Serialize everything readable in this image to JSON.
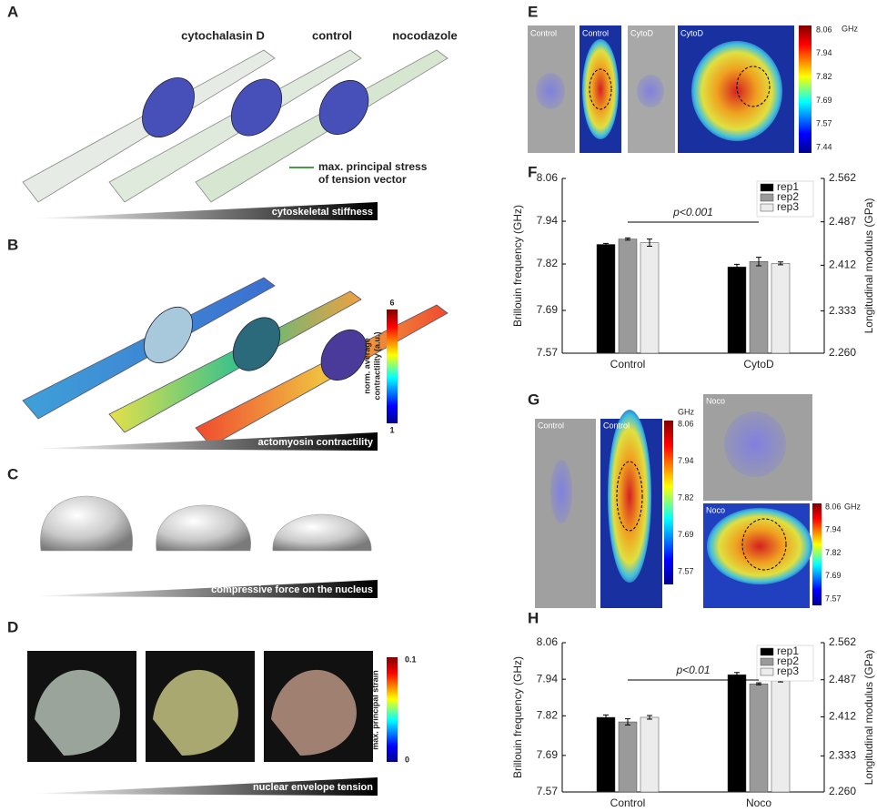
{
  "panels": {
    "A": {
      "label": "A",
      "conditions": [
        "cytochalasin D",
        "control",
        "nocodazole"
      ],
      "legend": [
        "max. principal stress",
        "of tension vector"
      ],
      "gradient": "cytoskeletal stiffness"
    },
    "B": {
      "label": "B",
      "colorbar": {
        "title": [
          "norm. average",
          "contractility (a.u.)"
        ],
        "max": "6",
        "min": "1"
      },
      "gradient": "actomyosin contractility"
    },
    "C": {
      "label": "C",
      "gradient": "compressive force on the nucleus"
    },
    "D": {
      "label": "D",
      "colorbar": {
        "title": "max. principal strain",
        "max": "0.1",
        "min": "0"
      },
      "gradient": "nuclear envelope tension"
    },
    "E": {
      "label": "E",
      "images": [
        "Control",
        "Control",
        "CytoD",
        "CytoD"
      ],
      "unit": "GHz",
      "colorbar_ticks": [
        "8.06",
        "7.94",
        "7.82",
        "7.69",
        "7.57",
        "7.44"
      ]
    },
    "F": {
      "label": "F"
    },
    "G": {
      "label": "G",
      "images": [
        "Control",
        "Control",
        "Noco",
        "Noco"
      ],
      "unit": "GHz",
      "colorbar_ticks": [
        "8.06",
        "7.94",
        "7.82",
        "7.69",
        "7.57"
      ]
    },
    "H": {
      "label": "H"
    }
  },
  "chart_data": [
    {
      "type": "bar",
      "categories": [
        "Control",
        "CytoD"
      ],
      "series": [
        {
          "name": "rep1",
          "color": "#000000",
          "values": [
            7.875,
            7.812
          ],
          "errors": [
            0.003,
            0.007
          ]
        },
        {
          "name": "rep2",
          "color": "#9a9a9a",
          "values": [
            7.89,
            7.827
          ],
          "errors": [
            0.003,
            0.012
          ]
        },
        {
          "name": "rep3",
          "color": "#ececec",
          "values": [
            7.88,
            7.822
          ],
          "errors": [
            0.01,
            0.004
          ]
        }
      ],
      "ylabel": "Brillouin frequency (GHz)",
      "y2label": "Longitudinal modulus (GPa)",
      "ylim": [
        7.57,
        8.06
      ],
      "yticks": [
        7.57,
        7.69,
        7.82,
        7.94,
        8.06
      ],
      "y2lim": [
        2.26,
        2.562
      ],
      "y2ticks": [
        {
          "value": 2.26,
          "label": "2.260"
        },
        2.333,
        2.412,
        2.487,
        2.562
      ],
      "annotation": "p<0.001",
      "legend": "upper right"
    },
    {
      "type": "bar",
      "categories": [
        "Control",
        "Noco"
      ],
      "series": [
        {
          "name": "rep1",
          "color": "#000000",
          "values": [
            7.815,
            7.955
          ],
          "errors": [
            0.008,
            0.007
          ]
        },
        {
          "name": "rep2",
          "color": "#9a9a9a",
          "values": [
            7.8,
            7.925
          ],
          "errors": [
            0.01,
            0.003
          ]
        },
        {
          "name": "rep3",
          "color": "#ececec",
          "values": [
            7.815,
            7.935
          ],
          "errors": [
            0.006,
            0.004
          ]
        }
      ],
      "ylabel": "Brillouin frequency (GHz)",
      "y2label": "Longitudinal modulus (GPa)",
      "ylim": [
        7.57,
        8.06
      ],
      "yticks": [
        7.57,
        7.69,
        7.82,
        7.94,
        8.06
      ],
      "y2lim": [
        2.26,
        2.562
      ],
      "y2ticks": [
        {
          "value": 2.26,
          "label": "2.260"
        },
        2.333,
        2.412,
        2.487,
        2.562
      ],
      "annotation": "p<0.01",
      "legend": "upper right"
    }
  ]
}
